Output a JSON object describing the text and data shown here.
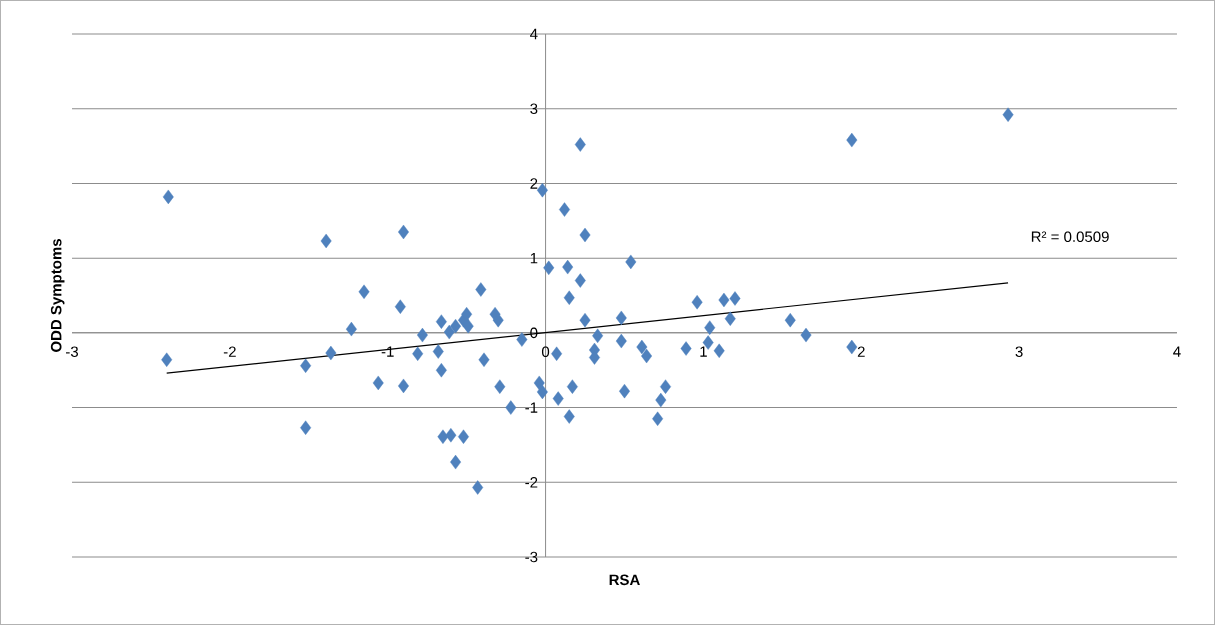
{
  "chart_data": {
    "type": "scatter",
    "xlabel": "RSA",
    "ylabel": "ODD Symptoms",
    "annotations": [
      "R² = 0.0509"
    ],
    "xlim": [
      -3,
      4
    ],
    "ylim": [
      -3,
      4
    ],
    "xticks": [
      -3,
      -2,
      -1,
      0,
      1,
      2,
      3,
      4
    ],
    "yticks": [
      -3,
      -2,
      -1,
      0,
      1,
      2,
      3,
      4
    ],
    "grid": "y",
    "marker": "diamond",
    "series": [
      {
        "color": "#4f81bd",
        "x": [
          -2.39,
          -2.4,
          -1.52,
          -1.52,
          -1.39,
          -1.36,
          -1.23,
          -1.15,
          -1.06,
          -0.92,
          -0.9,
          -0.9,
          -0.78,
          -0.81,
          -0.66,
          -0.68,
          -0.66,
          -0.65,
          -0.6,
          -0.52,
          -0.57,
          -0.61,
          -0.57,
          -0.52,
          -0.49,
          -0.5,
          -0.41,
          -0.39,
          -0.43,
          -0.32,
          -0.3,
          -0.29,
          -0.22,
          -0.15,
          -0.02,
          0.02,
          0.12,
          0.22,
          0.14,
          0.15,
          0.22,
          0.25,
          0.25,
          0.07,
          -0.04,
          -0.02,
          0.08,
          0.17,
          0.15,
          0.33,
          0.31,
          0.31,
          0.48,
          0.48,
          0.5,
          0.54,
          0.61,
          0.64,
          0.76,
          0.73,
          0.71,
          0.89,
          0.96,
          1.04,
          1.03,
          1.1,
          1.13,
          1.2,
          1.17,
          1.55,
          1.65,
          1.94,
          1.94,
          2.93
        ],
        "values": [
          1.82,
          -0.36,
          -0.44,
          -1.27,
          1.23,
          -0.27,
          0.05,
          0.55,
          -0.67,
          0.35,
          1.35,
          -0.71,
          -0.03,
          -0.28,
          0.15,
          -0.25,
          -0.5,
          -1.39,
          -1.37,
          -1.39,
          -1.73,
          0.01,
          0.09,
          0.17,
          0.09,
          0.25,
          0.58,
          -0.36,
          -2.07,
          0.25,
          0.17,
          -0.72,
          -1.0,
          -0.09,
          1.91,
          0.87,
          1.65,
          2.52,
          0.88,
          0.47,
          0.7,
          1.31,
          0.17,
          -0.28,
          -0.67,
          -0.79,
          -0.88,
          -0.72,
          -1.12,
          -0.04,
          -0.23,
          -0.33,
          0.2,
          -0.11,
          -0.78,
          0.95,
          -0.19,
          -0.31,
          -0.72,
          -0.9,
          -1.15,
          -0.21,
          0.41,
          0.07,
          -0.13,
          -0.24,
          0.44,
          0.46,
          0.19,
          0.17,
          -0.03,
          -0.19,
          2.58,
          2.92
        ]
      },
      {
        "type": "line",
        "marker": "none",
        "color": "#000000",
        "x": [
          -2.4,
          2.93
        ],
        "values": [
          -0.54,
          0.67
        ]
      }
    ]
  }
}
